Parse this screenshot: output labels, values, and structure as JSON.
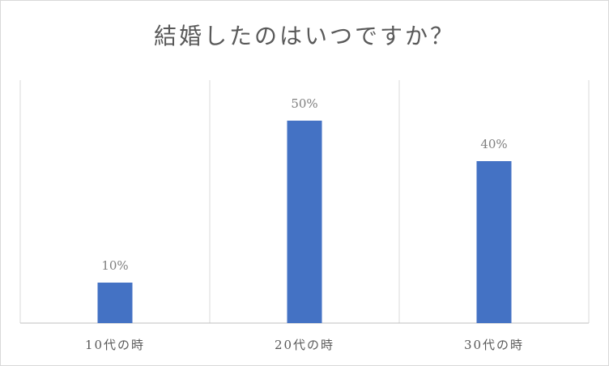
{
  "chart_data": {
    "type": "bar",
    "title": "結婚したのはいつですか？",
    "categories": [
      "10代の時",
      "20代の時",
      "30代の時"
    ],
    "values": [
      10,
      50,
      40
    ],
    "value_format": "percent",
    "data_labels": [
      "10%",
      "50%",
      "40%"
    ],
    "ylim": [
      0,
      50
    ],
    "grid": "vertical category separators",
    "legend": "none",
    "bar_color": "#4472c4",
    "xlabel": "",
    "ylabel": ""
  }
}
